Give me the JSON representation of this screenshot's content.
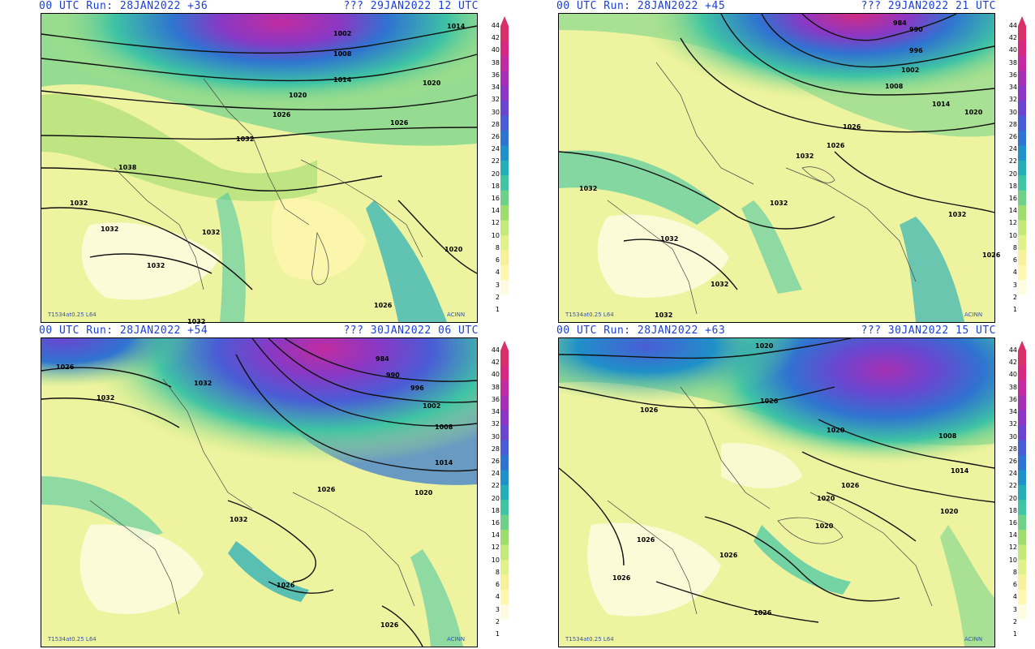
{
  "colors": {
    "header_text": "#1a3fd6",
    "scale": [
      "#ffffff",
      "#fffbe0",
      "#fff6b0",
      "#f6f19a",
      "#e0f08a",
      "#c4e87a",
      "#9edc6e",
      "#6fd08a",
      "#3fc4a4",
      "#25aeb8",
      "#1f90c8",
      "#2f74d0",
      "#4a5cd6",
      "#6a46d0",
      "#8a38c4",
      "#a630b4",
      "#c22ca0",
      "#d42a82",
      "#d8306a"
    ]
  },
  "colorbar": {
    "ticks": [
      "44",
      "42",
      "40",
      "38",
      "36",
      "34",
      "32",
      "30",
      "28",
      "26",
      "24",
      "22",
      "20",
      "18",
      "16",
      "14",
      "12",
      "10",
      "8",
      "6",
      "4",
      "3",
      "2",
      "1"
    ]
  },
  "panels": [
    {
      "run_text": "00 UTC Run: 28JAN2022 +36",
      "valid_text": "??? 29JAN2022 12 UTC",
      "model_tag": "T1534at0.25 L64",
      "credit": "ACINN",
      "isobar_labels": [
        "1014",
        "1002",
        "1008",
        "1014",
        "1020",
        "1020",
        "1026",
        "1026",
        "1032",
        "1038",
        "1032",
        "1032",
        "1032",
        "1032",
        "1020",
        "1026",
        "1032"
      ]
    },
    {
      "run_text": "00 UTC Run: 28JAN2022 +45",
      "valid_text": "??? 29JAN2022 21 UTC",
      "model_tag": "T1534at0.25 L64",
      "credit": "ACINN",
      "isobar_labels": [
        "984",
        "990",
        "996",
        "1002",
        "1008",
        "1014",
        "1020",
        "1026",
        "1026",
        "1032",
        "1032",
        "1032",
        "1032",
        "1032",
        "1032",
        "1032",
        "1026"
      ]
    },
    {
      "run_text": "00 UTC Run: 28JAN2022 +54",
      "valid_text": "??? 30JAN2022 06 UTC",
      "model_tag": "T1534at0.25 L64",
      "credit": "ACINN",
      "isobar_labels": [
        "1026",
        "1032",
        "1032",
        "984",
        "990",
        "996",
        "1002",
        "1008",
        "1014",
        "1026",
        "1020",
        "1032",
        "1026",
        "1026"
      ]
    },
    {
      "run_text": "00 UTC Run: 28JAN2022 +63",
      "valid_text": "??? 30JAN2022 15 UTC",
      "model_tag": "T1534at0.25 L64",
      "credit": "ACINN",
      "isobar_labels": [
        "1020",
        "1026",
        "1026",
        "1020",
        "1008",
        "1014",
        "1020",
        "1026",
        "1020",
        "1020",
        "1026",
        "1026",
        "1026",
        "1026"
      ]
    }
  ]
}
